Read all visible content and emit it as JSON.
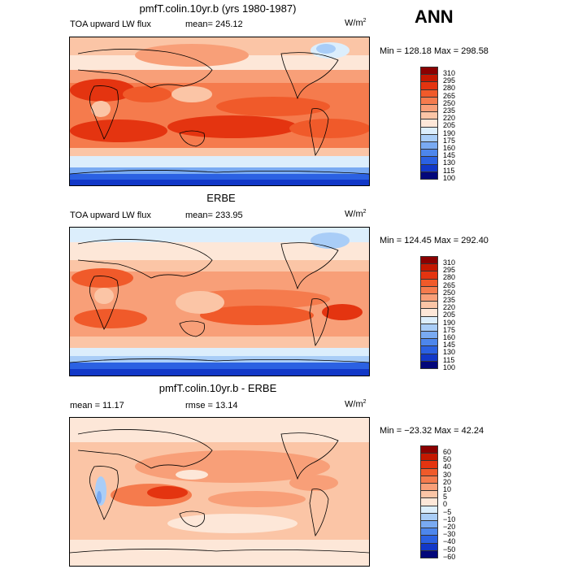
{
  "season": "ANN",
  "panels": [
    {
      "title": "pmfT.colin.10yr.b (yrs 1980-1987)",
      "left_label": "TOA upward LW flux",
      "mid_label": "mean= 245.12",
      "right_label": "W/m",
      "right_label_sup": "2",
      "minmax": "Min = 128.18  Max = 298.58",
      "levels": [
        "310",
        "295",
        "280",
        "265",
        "250",
        "235",
        "220",
        "205",
        "190",
        "175",
        "160",
        "145",
        "130",
        "115",
        "100"
      ],
      "colors": [
        "#8b0000",
        "#c41800",
        "#e43410",
        "#f05a2a",
        "#f57b4d",
        "#f89f78",
        "#fbc5a6",
        "#fde7d8",
        "#dceefc",
        "#a9cdf7",
        "#79aaf2",
        "#4d86ec",
        "#2b61e2",
        "#1238c8",
        "#03077a"
      ]
    },
    {
      "title": "ERBE",
      "left_label": "TOA upward LW flux",
      "mid_label": "mean= 233.95",
      "right_label": "W/m",
      "right_label_sup": "2",
      "minmax": "Min = 124.45  Max = 292.40",
      "levels": [
        "310",
        "295",
        "280",
        "265",
        "250",
        "235",
        "220",
        "205",
        "190",
        "175",
        "160",
        "145",
        "130",
        "115",
        "100"
      ],
      "colors": [
        "#8b0000",
        "#c41800",
        "#e43410",
        "#f05a2a",
        "#f57b4d",
        "#f89f78",
        "#fbc5a6",
        "#fde7d8",
        "#dceefc",
        "#a9cdf7",
        "#79aaf2",
        "#4d86ec",
        "#2b61e2",
        "#1238c8",
        "#03077a"
      ]
    },
    {
      "title": "pmfT.colin.10yr.b - ERBE",
      "left_label": "mean =  11.17",
      "mid_label": "rmse =  13.14",
      "right_label": "W/m",
      "right_label_sup": "2",
      "minmax": "Min = −23.32  Max =  42.24",
      "levels": [
        "60",
        "50",
        "40",
        "30",
        "20",
        "10",
        "5",
        "0",
        "−5",
        "−10",
        "−20",
        "−30",
        "−40",
        "−50",
        "−60"
      ],
      "colors": [
        "#8b0000",
        "#c41800",
        "#e43410",
        "#f05a2a",
        "#f57b4d",
        "#f89f78",
        "#fbc5a6",
        "#fde7d8",
        "#dceefc",
        "#a9cdf7",
        "#79aaf2",
        "#4d86ec",
        "#2b61e2",
        "#1238c8",
        "#03077a"
      ]
    }
  ]
}
